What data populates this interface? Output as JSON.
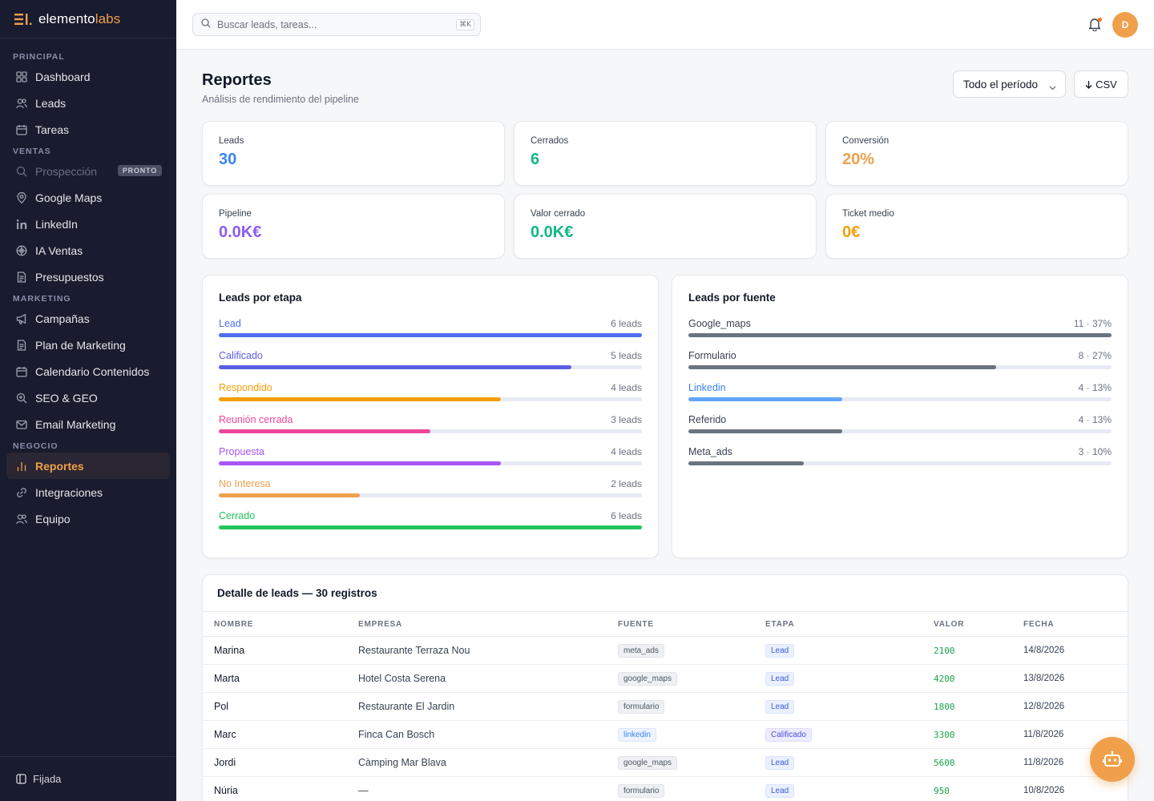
{
  "brand": {
    "prefix": "elemento",
    "suffix": "labs"
  },
  "sidebar": {
    "sections": [
      {
        "label": "PRINCIPAL",
        "items": [
          {
            "label": "Dashboard",
            "icon": "dashboard-icon"
          },
          {
            "label": "Leads",
            "icon": "users-icon"
          },
          {
            "label": "Tareas",
            "icon": "calendar-icon"
          }
        ]
      },
      {
        "label": "VENTAS",
        "items": [
          {
            "label": "Prospección",
            "icon": "search-icon",
            "disabled": true,
            "badge": "PRONTO"
          },
          {
            "label": "Google Maps",
            "icon": "map-pin-icon"
          },
          {
            "label": "LinkedIn",
            "icon": "linkedin-icon"
          },
          {
            "label": "IA Ventas",
            "icon": "ai-icon"
          },
          {
            "label": "Presupuestos",
            "icon": "document-icon"
          }
        ]
      },
      {
        "label": "MARKETING",
        "items": [
          {
            "label": "Campañas",
            "icon": "megaphone-icon"
          },
          {
            "label": "Plan de Marketing",
            "icon": "document-icon"
          },
          {
            "label": "Calendario Contenidos",
            "icon": "calendar-icon"
          },
          {
            "label": "SEO & GEO",
            "icon": "search-plus-icon"
          },
          {
            "label": "Email Marketing",
            "icon": "mail-icon"
          }
        ]
      },
      {
        "label": "NEGOCIO",
        "items": [
          {
            "label": "Reportes",
            "icon": "bar-chart-icon",
            "active": true
          },
          {
            "label": "Integraciones",
            "icon": "link-icon"
          },
          {
            "label": "Equipo",
            "icon": "users-icon"
          }
        ]
      }
    ],
    "footer_label": "Fijada"
  },
  "search": {
    "placeholder": "Buscar leads, tareas...",
    "shortcut": "⌘K"
  },
  "user": {
    "initial": "D"
  },
  "page": {
    "title": "Reportes",
    "subtitle": "Análisis de rendimiento del pipeline",
    "period_label": "Todo el período",
    "csv_label": "CSV"
  },
  "kpis": [
    {
      "label": "Leads",
      "value": "30",
      "color": "#3b82f6"
    },
    {
      "label": "Cerrados",
      "value": "6",
      "color": "#10b981"
    },
    {
      "label": "Conversión",
      "value": "20%",
      "color": "#f0a04b"
    },
    {
      "label": "Pipeline",
      "value": "0.0K€",
      "color": "#8b5cf6"
    },
    {
      "label": "Valor cerrado",
      "value": "0.0K€",
      "color": "#10b981"
    },
    {
      "label": "Ticket medio",
      "value": "0€",
      "color": "#f59e0b"
    }
  ],
  "stages_card": {
    "title": "Leads por etapa",
    "items": [
      {
        "label": "Lead",
        "count": "6 leads",
        "value": 6,
        "color": "#4f6ef0"
      },
      {
        "label": "Calificado",
        "count": "5 leads",
        "value": 5,
        "color": "#5b5ce6"
      },
      {
        "label": "Respondido",
        "count": "4 leads",
        "value": 4,
        "color": "#f59e0b"
      },
      {
        "label": "Reunión cerrada",
        "count": "3 leads",
        "value": 3,
        "color": "#ec4899"
      },
      {
        "label": "Propuesta",
        "count": "4 leads",
        "value": 4,
        "color": "#a855f7"
      },
      {
        "label": "No Interesa",
        "count": "2 leads",
        "value": 2,
        "color": "#f0a04b"
      },
      {
        "label": "Cerrado",
        "count": "6 leads",
        "value": 6,
        "color": "#22c55e"
      }
    ],
    "max": 6
  },
  "sources_card": {
    "title": "Leads por fuente",
    "items": [
      {
        "label": "Google_maps",
        "count": "11 · 37%",
        "value": 11,
        "color": "#6b7280",
        "text_color": "#374151"
      },
      {
        "label": "Formulario",
        "count": "8 · 27%",
        "value": 8,
        "color": "#6b7280",
        "text_color": "#374151"
      },
      {
        "label": "Linkedin",
        "count": "4 · 13%",
        "value": 4,
        "color": "#60a5fa",
        "text_color": "#3b82f6"
      },
      {
        "label": "Referido",
        "count": "4 · 13%",
        "value": 4,
        "color": "#6b7280",
        "text_color": "#374151"
      },
      {
        "label": "Meta_ads",
        "count": "3 · 10%",
        "value": 3,
        "color": "#6b7280",
        "text_color": "#374151"
      }
    ],
    "max": 11
  },
  "table": {
    "title": "Detalle de leads — 30 registros",
    "headers": [
      "NOMBRE",
      "EMPRESA",
      "FUENTE",
      "ETAPA",
      "VALOR",
      "FECHA"
    ],
    "rows": [
      {
        "name": "Marina",
        "company": "Restaurante Terraza Nou",
        "source": "meta_ads",
        "stage": "Lead",
        "value": "2100",
        "date": "14/8/2026"
      },
      {
        "name": "Marta",
        "company": "Hotel Costa Serena",
        "source": "google_maps",
        "stage": "Lead",
        "value": "4200",
        "date": "13/8/2026"
      },
      {
        "name": "Pol",
        "company": "Restaurante El Jardin",
        "source": "formulario",
        "stage": "Lead",
        "value": "1800",
        "date": "12/8/2026"
      },
      {
        "name": "Marc",
        "company": "Finca Can Bosch",
        "source": "linkedin",
        "stage": "Calificado",
        "value": "3300",
        "date": "11/8/2026"
      },
      {
        "name": "Jordi",
        "company": "Càmping Mar Blava",
        "source": "google_maps",
        "stage": "Lead",
        "value": "5600",
        "date": "11/8/2026"
      },
      {
        "name": "Núria",
        "company": "—",
        "source": "formulario",
        "stage": "Lead",
        "value": "950",
        "date": "10/8/2026"
      }
    ]
  }
}
